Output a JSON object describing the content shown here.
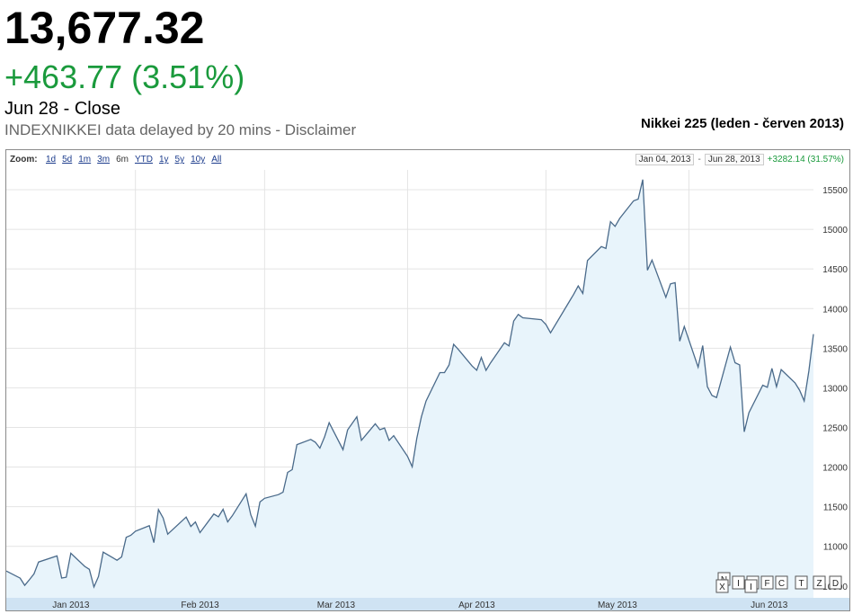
{
  "quote": {
    "price": "13,677.32",
    "change": "+463.77 (3.51%)",
    "date_line": "Jun 28 - Close",
    "delay_line": "INDEXNIKKEI data delayed by 20 mins - Disclaimer"
  },
  "chart_title": "Nikkei 225 (leden - červen 2013)",
  "zoom": {
    "label": "Zoom:",
    "options": [
      "1d",
      "5d",
      "1m",
      "3m",
      "6m",
      "YTD",
      "1y",
      "5y",
      "10y",
      "All"
    ],
    "active": "6m"
  },
  "range": {
    "start": "Jan 04, 2013",
    "separator": "-",
    "end": "Jun 28, 2013",
    "delta": "+3282.14 (31.57%)"
  },
  "colors": {
    "up": "#1a9a3c",
    "line": "#4a6a8a",
    "fill": "#e8f4fb",
    "axis_band": "#cfe3f3"
  },
  "flags": [
    "N",
    "I",
    "M",
    "F",
    "C",
    "T",
    "Z",
    "X",
    "I",
    "D"
  ],
  "chart_data": {
    "type": "area",
    "title": "Nikkei 225 (leden - červen 2013)",
    "xlabel": "",
    "ylabel": "",
    "ylim": [
      10350,
      15750
    ],
    "yticks": [
      10500,
      11000,
      11500,
      12000,
      12500,
      13000,
      13500,
      14000,
      14500,
      15000,
      15500
    ],
    "ytick_labels": [
      "10500",
      "11000",
      "11500",
      "12000",
      "12500",
      "13000",
      "13500",
      "14000",
      "14500",
      "15000",
      "15500"
    ],
    "month_labels": [
      "Jan 2013",
      "Feb 2013",
      "Mar 2013",
      "Apr 2013",
      "May 2013",
      "Jun 2013"
    ],
    "x_range": [
      "2013-01-04",
      "2013-06-28"
    ],
    "month_starts": [
      "2013-01-01",
      "2013-02-01",
      "2013-03-01",
      "2013-04-01",
      "2013-05-01",
      "2013-06-01"
    ],
    "grid": true,
    "series": [
      {
        "values": [
          [
            "2013-01-04",
            10688
          ],
          [
            "2013-01-07",
            10599
          ],
          [
            "2013-01-08",
            10508
          ],
          [
            "2013-01-09",
            10578
          ],
          [
            "2013-01-10",
            10652
          ],
          [
            "2013-01-11",
            10801
          ],
          [
            "2013-01-15",
            10879
          ],
          [
            "2013-01-16",
            10600
          ],
          [
            "2013-01-17",
            10610
          ],
          [
            "2013-01-18",
            10913
          ],
          [
            "2013-01-21",
            10747
          ],
          [
            "2013-01-22",
            10710
          ],
          [
            "2013-01-23",
            10487
          ],
          [
            "2013-01-24",
            10620
          ],
          [
            "2013-01-25",
            10926
          ],
          [
            "2013-01-28",
            10824
          ],
          [
            "2013-01-29",
            10866
          ],
          [
            "2013-01-30",
            11113
          ],
          [
            "2013-01-31",
            11138
          ],
          [
            "2013-02-01",
            11191
          ],
          [
            "2013-02-04",
            11260
          ],
          [
            "2013-02-05",
            11046
          ],
          [
            "2013-02-06",
            11463
          ],
          [
            "2013-02-07",
            11357
          ],
          [
            "2013-02-08",
            11153
          ],
          [
            "2013-02-12",
            11369
          ],
          [
            "2013-02-13",
            11251
          ],
          [
            "2013-02-14",
            11307
          ],
          [
            "2013-02-15",
            11173
          ],
          [
            "2013-02-18",
            11407
          ],
          [
            "2013-02-19",
            11372
          ],
          [
            "2013-02-20",
            11468
          ],
          [
            "2013-02-21",
            11309
          ],
          [
            "2013-02-22",
            11385
          ],
          [
            "2013-02-25",
            11662
          ],
          [
            "2013-02-26",
            11398
          ],
          [
            "2013-02-27",
            11254
          ],
          [
            "2013-02-28",
            11559
          ],
          [
            "2013-03-01",
            11606
          ],
          [
            "2013-03-04",
            11652
          ],
          [
            "2013-03-05",
            11683
          ],
          [
            "2013-03-06",
            11932
          ],
          [
            "2013-03-07",
            11968
          ],
          [
            "2013-03-08",
            12283
          ],
          [
            "2013-03-11",
            12349
          ],
          [
            "2013-03-12",
            12314
          ],
          [
            "2013-03-13",
            12239
          ],
          [
            "2013-03-14",
            12381
          ],
          [
            "2013-03-15",
            12560
          ],
          [
            "2013-03-18",
            12220
          ],
          [
            "2013-03-19",
            12468
          ],
          [
            "2013-03-21",
            12635
          ],
          [
            "2013-03-22",
            12338
          ],
          [
            "2013-03-25",
            12546
          ],
          [
            "2013-03-26",
            12471
          ],
          [
            "2013-03-27",
            12493
          ],
          [
            "2013-03-28",
            12336
          ],
          [
            "2013-03-29",
            12397
          ],
          [
            "2013-04-01",
            12135
          ],
          [
            "2013-04-02",
            12003
          ],
          [
            "2013-04-03",
            12362
          ],
          [
            "2013-04-04",
            12634
          ],
          [
            "2013-04-05",
            12833
          ],
          [
            "2013-04-08",
            13192
          ],
          [
            "2013-04-09",
            13192
          ],
          [
            "2013-04-10",
            13288
          ],
          [
            "2013-04-11",
            13549
          ],
          [
            "2013-04-12",
            13485
          ],
          [
            "2013-04-15",
            13275
          ],
          [
            "2013-04-16",
            13221
          ],
          [
            "2013-04-17",
            13382
          ],
          [
            "2013-04-18",
            13220
          ],
          [
            "2013-04-19",
            13316
          ],
          [
            "2013-04-22",
            13568
          ],
          [
            "2013-04-23",
            13529
          ],
          [
            "2013-04-24",
            13843
          ],
          [
            "2013-04-25",
            13926
          ],
          [
            "2013-04-26",
            13884
          ],
          [
            "2013-04-30",
            13860
          ],
          [
            "2013-05-01",
            13799
          ],
          [
            "2013-05-02",
            13694
          ],
          [
            "2013-05-07",
            14180
          ],
          [
            "2013-05-08",
            14285
          ],
          [
            "2013-05-09",
            14191
          ],
          [
            "2013-05-10",
            14607
          ],
          [
            "2013-05-13",
            14782
          ],
          [
            "2013-05-14",
            14758
          ],
          [
            "2013-05-15",
            15096
          ],
          [
            "2013-05-16",
            15037
          ],
          [
            "2013-05-17",
            15138
          ],
          [
            "2013-05-20",
            15360
          ],
          [
            "2013-05-21",
            15381
          ],
          [
            "2013-05-22",
            15627
          ],
          [
            "2013-05-23",
            14484
          ],
          [
            "2013-05-24",
            14612
          ],
          [
            "2013-05-27",
            14142
          ],
          [
            "2013-05-28",
            14311
          ],
          [
            "2013-05-29",
            14326
          ],
          [
            "2013-05-30",
            13589
          ],
          [
            "2013-05-31",
            13774
          ],
          [
            "2013-06-03",
            13261
          ],
          [
            "2013-06-04",
            13533
          ],
          [
            "2013-06-05",
            13014
          ],
          [
            "2013-06-06",
            12904
          ],
          [
            "2013-06-07",
            12877
          ],
          [
            "2013-06-10",
            13514
          ],
          [
            "2013-06-11",
            13317
          ],
          [
            "2013-06-12",
            13289
          ],
          [
            "2013-06-13",
            12445
          ],
          [
            "2013-06-14",
            12686
          ],
          [
            "2013-06-17",
            13033
          ],
          [
            "2013-06-18",
            13007
          ],
          [
            "2013-06-19",
            13245
          ],
          [
            "2013-06-20",
            13014
          ],
          [
            "2013-06-21",
            13230
          ],
          [
            "2013-06-24",
            13062
          ],
          [
            "2013-06-25",
            12969
          ],
          [
            "2013-06-26",
            12834
          ],
          [
            "2013-06-27",
            13213
          ],
          [
            "2013-06-28",
            13677
          ]
        ]
      }
    ]
  }
}
